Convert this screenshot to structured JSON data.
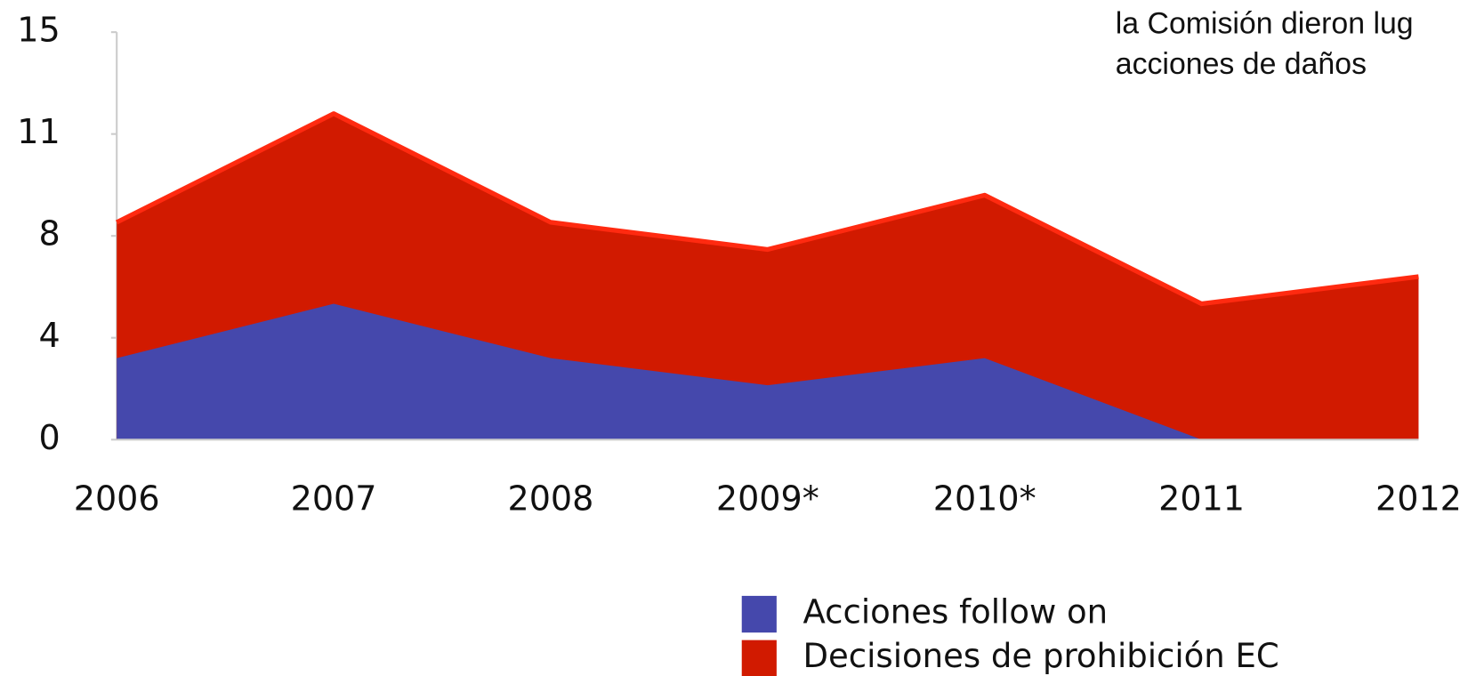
{
  "chart_data": {
    "type": "area",
    "annotations": [
      "la Comisión dieron lug",
      "acciones de daños"
    ],
    "categories": [
      "2006",
      "2007",
      "2008",
      "2009*",
      "2010*",
      "2011",
      "2012"
    ],
    "series": [
      {
        "name": "Acciones follow on",
        "color": "#4548ac",
        "values": [
          3,
          5,
          3,
          2,
          3,
          0,
          0
        ]
      },
      {
        "name": "Decisiones de prohibición EC",
        "color": "#d11a00",
        "edge_color": "#ff2a10",
        "values": [
          8,
          12,
          8,
          7,
          9,
          5,
          6
        ]
      }
    ],
    "ylim": [
      0,
      15
    ],
    "yticks": [
      0,
      {
        "value": 3.75,
        "label": "4"
      },
      {
        "value": 7.5,
        "label": "8"
      },
      {
        "value": 11.25,
        "label": "11"
      },
      15
    ]
  }
}
